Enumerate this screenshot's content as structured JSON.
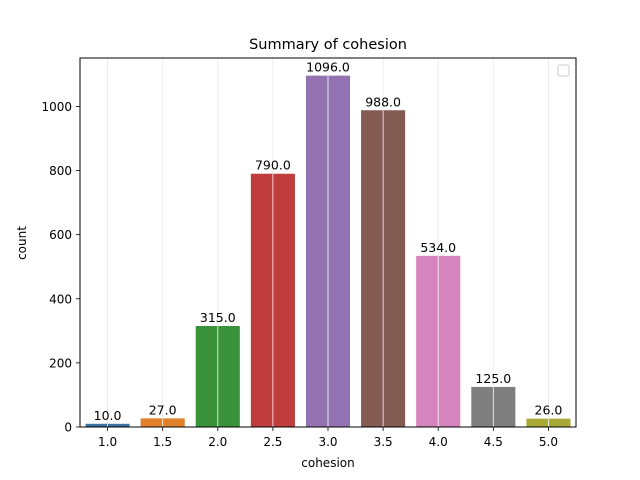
{
  "chart_data": {
    "type": "bar",
    "title": "Summary of cohesion",
    "xlabel": "cohesion",
    "ylabel": "count",
    "categories": [
      "1.0",
      "1.5",
      "2.0",
      "2.5",
      "3.0",
      "3.5",
      "4.0",
      "4.5",
      "5.0"
    ],
    "values": [
      10,
      27,
      315,
      790,
      1096,
      988,
      534,
      125,
      26
    ],
    "data_labels": [
      "10.0",
      "27.0",
      "315.0",
      "790.0",
      "1096.0",
      "988.0",
      "534.0",
      "125.0",
      "26.0"
    ],
    "ylim": [
      0,
      1151
    ],
    "yticks": [
      0,
      200,
      400,
      600,
      800,
      1000
    ],
    "colors": [
      "#3a72a4",
      "#e1812c",
      "#3a923a",
      "#c03d3e",
      "#9372b2",
      "#845b53",
      "#d684bd",
      "#7f7f7f",
      "#a9aa35"
    ],
    "grid": "vertical",
    "legend": "top-right (empty)"
  }
}
